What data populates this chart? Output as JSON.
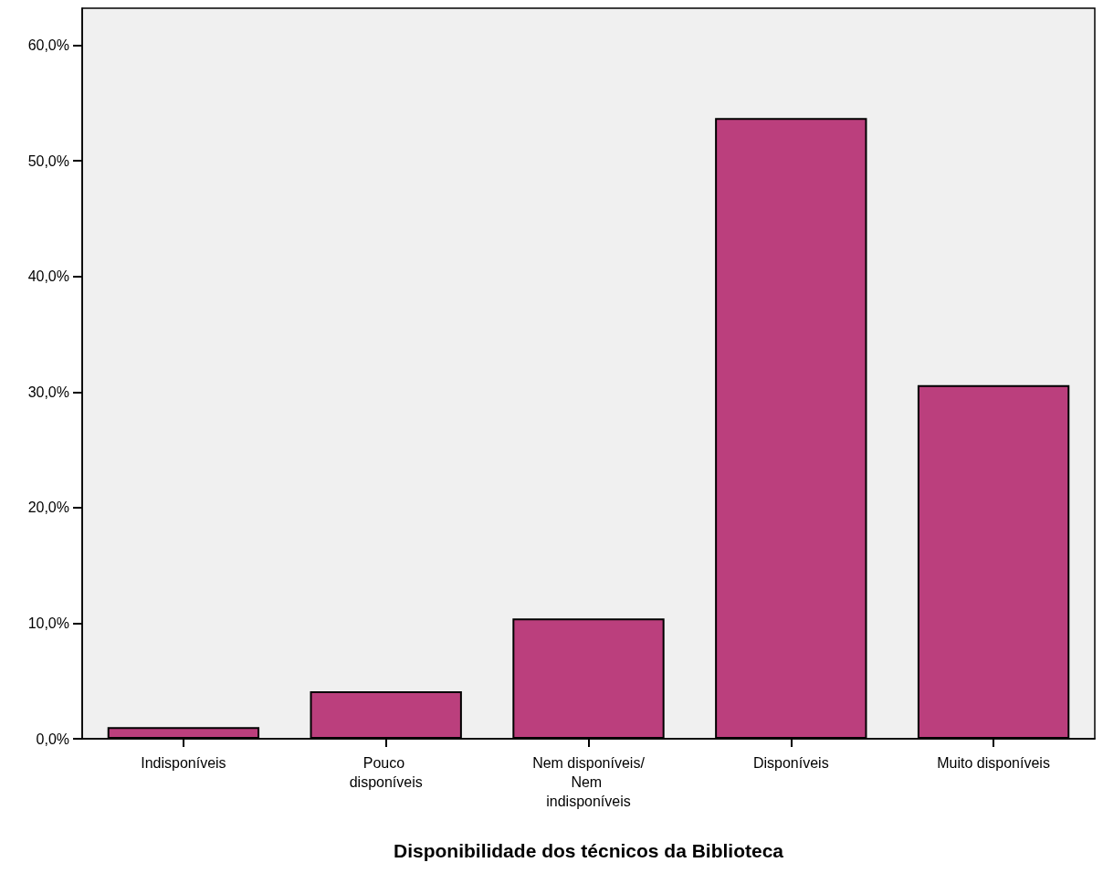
{
  "chart_data": {
    "type": "bar",
    "xlabel": "Disponibilidade dos técnicos da Biblioteca",
    "categories": [
      "Indisponíveis",
      "Pouco disponíveis",
      "Nem disponíveis/Nem indisponíveis",
      "Disponíveis",
      "Muito disponíveis"
    ],
    "values": [
      1.0,
      4.1,
      10.4,
      53.7,
      30.6
    ],
    "color": "#bb3f7d",
    "ylim": [
      0,
      63.2
    ],
    "yticks": [
      {
        "value": 0,
        "label": "0,0%"
      },
      {
        "value": 10,
        "label": "10,0%"
      },
      {
        "value": 20,
        "label": "20,0%"
      },
      {
        "value": 30,
        "label": "30,0%"
      },
      {
        "value": 40,
        "label": "40,0%"
      },
      {
        "value": 50,
        "label": "50,0%"
      },
      {
        "value": 60,
        "label": "60,0%"
      }
    ],
    "grid": false
  }
}
